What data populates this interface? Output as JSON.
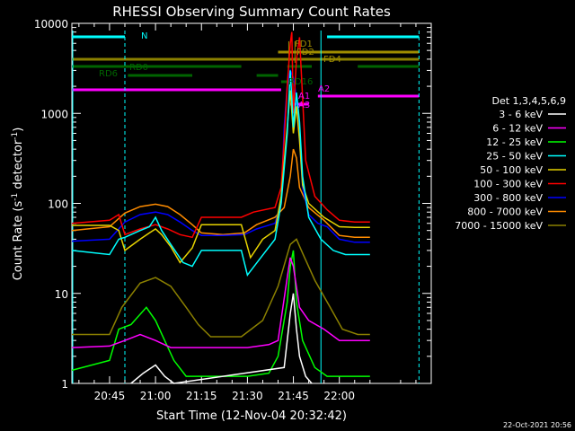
{
  "chart_data": {
    "type": "line",
    "title": "RHESSI Observing Summary Count Rates",
    "xlabel": "Start Time (12-Nov-04 20:32:42)",
    "ylabel_main": "Count Rate (s",
    "ylabel_sup1": "-1",
    "ylabel_mid": " detector",
    "ylabel_sup2": "-1",
    "ylabel_end": ")",
    "footer_date": "22-Oct-2021 20:56",
    "x_range_min": [
      32.7,
      150.0
    ],
    "y_scale": "log",
    "ylim": [
      1,
      10000
    ],
    "x_ticks": [
      {
        "t": 45,
        "label": "20:45"
      },
      {
        "t": 60,
        "label": "21:00"
      },
      {
        "t": 75,
        "label": "21:15"
      },
      {
        "t": 90,
        "label": "21:30"
      },
      {
        "t": 105,
        "label": "21:45"
      },
      {
        "t": 120,
        "label": "22:00"
      }
    ],
    "y_ticks": [
      {
        "v": 1,
        "label": "1"
      },
      {
        "v": 10,
        "label": "10"
      },
      {
        "v": 100,
        "label": "100"
      },
      {
        "v": 1000,
        "label": "1000"
      },
      {
        "v": 10000,
        "label": "10000"
      }
    ],
    "legend": {
      "header": "Det 1,3,4,5,6,9",
      "placement": "right",
      "entries": [
        {
          "label": "3 - 6 keV",
          "color": "#ffffff"
        },
        {
          "label": "6 - 12 keV",
          "color": "#ff00ff"
        },
        {
          "label": "12 - 25 keV",
          "color": "#00ff00"
        },
        {
          "label": "25 - 50 keV",
          "color": "#00ffff"
        },
        {
          "label": "50 - 100 keV",
          "color": "#e6d200"
        },
        {
          "label": "100 - 300 keV",
          "color": "#ff0000"
        },
        {
          "label": "300 - 800 keV",
          "color": "#0000ff"
        },
        {
          "label": "800 - 7000 keV",
          "color": "#ff8c00"
        },
        {
          "label": "7000 - 15000 keV",
          "color": "#8b8000"
        }
      ]
    },
    "series": [
      {
        "band": "7000 - 15000 keV",
        "color": "#8b8000",
        "points": [
          [
            32.7,
            3.5
          ],
          [
            45,
            3.5
          ],
          [
            49,
            7
          ],
          [
            55,
            13
          ],
          [
            60,
            15
          ],
          [
            65,
            12
          ],
          [
            70,
            7
          ],
          [
            74,
            4.5
          ],
          [
            78,
            3.3
          ],
          [
            88,
            3.3
          ],
          [
            95,
            5
          ],
          [
            100,
            12
          ],
          [
            104,
            35
          ],
          [
            106,
            40
          ],
          [
            108,
            28
          ],
          [
            112,
            14
          ],
          [
            117,
            7
          ],
          [
            121,
            4
          ],
          [
            126,
            3.5
          ],
          [
            130,
            3.5
          ]
        ]
      },
      {
        "band": "800 - 7000 keV",
        "color": "#ff8c00",
        "points": [
          [
            32.7,
            50
          ],
          [
            45,
            55
          ],
          [
            50,
            78
          ],
          [
            55,
            92
          ],
          [
            60,
            98
          ],
          [
            64,
            92
          ],
          [
            68,
            75
          ],
          [
            72,
            58
          ],
          [
            75,
            47
          ],
          [
            82,
            45
          ],
          [
            89,
            47
          ],
          [
            93,
            58
          ],
          [
            99,
            70
          ],
          [
            102,
            90
          ],
          [
            104,
            200
          ],
          [
            105,
            400
          ],
          [
            106,
            320
          ],
          [
            107,
            150
          ],
          [
            110,
            90
          ],
          [
            115,
            65
          ],
          [
            120,
            44
          ],
          [
            125,
            42
          ],
          [
            130,
            42
          ]
        ]
      },
      {
        "band": "300 - 800 keV",
        "color": "#0000ff",
        "points": [
          [
            32.7,
            38
          ],
          [
            45,
            40
          ],
          [
            50,
            62
          ],
          [
            55,
            75
          ],
          [
            60,
            80
          ],
          [
            64,
            75
          ],
          [
            68,
            62
          ],
          [
            72,
            50
          ],
          [
            75,
            44
          ],
          [
            82,
            44
          ],
          [
            89,
            45
          ],
          [
            93,
            52
          ],
          [
            99,
            60
          ],
          [
            101,
            100
          ],
          [
            102,
            700
          ],
          [
            103,
            2000
          ],
          [
            104,
            3000
          ],
          [
            105,
            2500
          ],
          [
            106,
            1500
          ],
          [
            107,
            500
          ],
          [
            108,
            150
          ],
          [
            110,
            75
          ],
          [
            113,
            60
          ],
          [
            116,
            55
          ],
          [
            120,
            40
          ],
          [
            125,
            37
          ],
          [
            130,
            37
          ]
        ]
      },
      {
        "band": "100 - 300 keV",
        "color": "#ff0000",
        "points": [
          [
            32.7,
            60
          ],
          [
            45,
            65
          ],
          [
            48,
            75
          ],
          [
            50,
            45
          ],
          [
            55,
            52
          ],
          [
            60,
            58
          ],
          [
            64,
            52
          ],
          [
            68,
            45
          ],
          [
            72,
            42
          ],
          [
            75,
            70
          ],
          [
            88,
            70
          ],
          [
            92,
            80
          ],
          [
            99,
            90
          ],
          [
            101,
            150
          ],
          [
            102,
            500
          ],
          [
            103,
            2000
          ],
          [
            104,
            6000
          ],
          [
            104.5,
            8000
          ],
          [
            105,
            1000
          ],
          [
            106,
            4000
          ],
          [
            107,
            7000
          ],
          [
            108,
            1500
          ],
          [
            109,
            300
          ],
          [
            112,
            120
          ],
          [
            116,
            85
          ],
          [
            120,
            65
          ],
          [
            125,
            62
          ],
          [
            130,
            62
          ]
        ]
      },
      {
        "band": "50 - 100 keV",
        "color": "#e6d200",
        "points": [
          [
            32.7,
            57
          ],
          [
            45,
            57
          ],
          [
            48,
            50
          ],
          [
            50,
            30
          ],
          [
            55,
            40
          ],
          [
            58,
            47
          ],
          [
            60,
            52
          ],
          [
            62,
            45
          ],
          [
            65,
            33
          ],
          [
            68,
            22
          ],
          [
            72,
            32
          ],
          [
            75,
            58
          ],
          [
            88,
            58
          ],
          [
            91,
            25
          ],
          [
            95,
            40
          ],
          [
            99,
            50
          ],
          [
            101,
            120
          ],
          [
            103,
            700
          ],
          [
            104,
            1800
          ],
          [
            105,
            600
          ],
          [
            106,
            1200
          ],
          [
            107,
            500
          ],
          [
            108,
            160
          ],
          [
            110,
            100
          ],
          [
            115,
            70
          ],
          [
            120,
            55
          ],
          [
            125,
            54
          ],
          [
            130,
            54
          ]
        ]
      },
      {
        "band": "25 - 50 keV",
        "color": "#00ffff",
        "points": [
          [
            32.7,
            30
          ],
          [
            45,
            27
          ],
          [
            48,
            40
          ],
          [
            50,
            42
          ],
          [
            55,
            50
          ],
          [
            58,
            55
          ],
          [
            60,
            70
          ],
          [
            62,
            50
          ],
          [
            65,
            35
          ],
          [
            69,
            22
          ],
          [
            72,
            20
          ],
          [
            75,
            30
          ],
          [
            88,
            30
          ],
          [
            90,
            16
          ],
          [
            94,
            24
          ],
          [
            99,
            40
          ],
          [
            101,
            100
          ],
          [
            103,
            600
          ],
          [
            104,
            3000
          ],
          [
            105,
            700
          ],
          [
            106,
            1700
          ],
          [
            107,
            800
          ],
          [
            108,
            200
          ],
          [
            110,
            70
          ],
          [
            114,
            40
          ],
          [
            118,
            30
          ],
          [
            122,
            27
          ],
          [
            126,
            27
          ],
          [
            130,
            27
          ]
        ]
      },
      {
        "band": "12 - 25 keV",
        "color": "#00ff00",
        "points": [
          [
            32.7,
            1.4
          ],
          [
            45,
            1.8
          ],
          [
            48,
            4
          ],
          [
            52,
            4.5
          ],
          [
            57,
            7
          ],
          [
            60,
            5
          ],
          [
            63,
            3
          ],
          [
            66,
            1.8
          ],
          [
            70,
            1.2
          ],
          [
            75,
            1.2
          ],
          [
            90,
            1.2
          ],
          [
            97,
            1.3
          ],
          [
            100,
            2
          ],
          [
            103,
            8
          ],
          [
            104,
            20
          ],
          [
            105,
            30
          ],
          [
            106,
            8
          ],
          [
            108,
            3
          ],
          [
            112,
            1.5
          ],
          [
            116,
            1.2
          ],
          [
            120,
            1.2
          ],
          [
            130,
            1.2
          ]
        ]
      },
      {
        "band": "6 - 12 keV",
        "color": "#ff00ff",
        "points": [
          [
            32.7,
            2.5
          ],
          [
            45,
            2.6
          ],
          [
            50,
            3
          ],
          [
            55,
            3.5
          ],
          [
            60,
            3
          ],
          [
            65,
            2.5
          ],
          [
            70,
            2.5
          ],
          [
            75,
            2.5
          ],
          [
            90,
            2.5
          ],
          [
            97,
            2.7
          ],
          [
            100,
            3
          ],
          [
            103,
            15
          ],
          [
            104,
            25
          ],
          [
            105,
            20
          ],
          [
            107,
            7
          ],
          [
            110,
            5
          ],
          [
            115,
            4
          ],
          [
            120,
            3
          ],
          [
            130,
            3
          ]
        ]
      },
      {
        "band": "3 - 6 keV",
        "color": "#ffffff",
        "points": [
          [
            52,
            1.0
          ],
          [
            56,
            1.3
          ],
          [
            60,
            1.6
          ],
          [
            63,
            1.2
          ],
          [
            66,
            1.0
          ],
          [
            102,
            1.5
          ],
          [
            104,
            6
          ],
          [
            105,
            10
          ],
          [
            106,
            4
          ],
          [
            107,
            2
          ],
          [
            109,
            1.2
          ],
          [
            111,
            1.0
          ]
        ]
      }
    ],
    "state_labels": [
      {
        "text": "N",
        "color": "#00ffff"
      },
      {
        "text": "RD0",
        "color": "#006400"
      },
      {
        "text": "RD6",
        "color": "#006400"
      },
      {
        "text": "RD16",
        "color": "#006400"
      },
      {
        "text": "FD1",
        "color": "#a08c00"
      },
      {
        "text": "FD2",
        "color": "#a08c00"
      },
      {
        "text": "FD4",
        "color": "#a08c00"
      },
      {
        "text": "A1",
        "color": "#ff00ff"
      },
      {
        "text": "A2",
        "color": "#ff00ff"
      },
      {
        "text": "A3",
        "color": "#ff00ff"
      }
    ]
  }
}
